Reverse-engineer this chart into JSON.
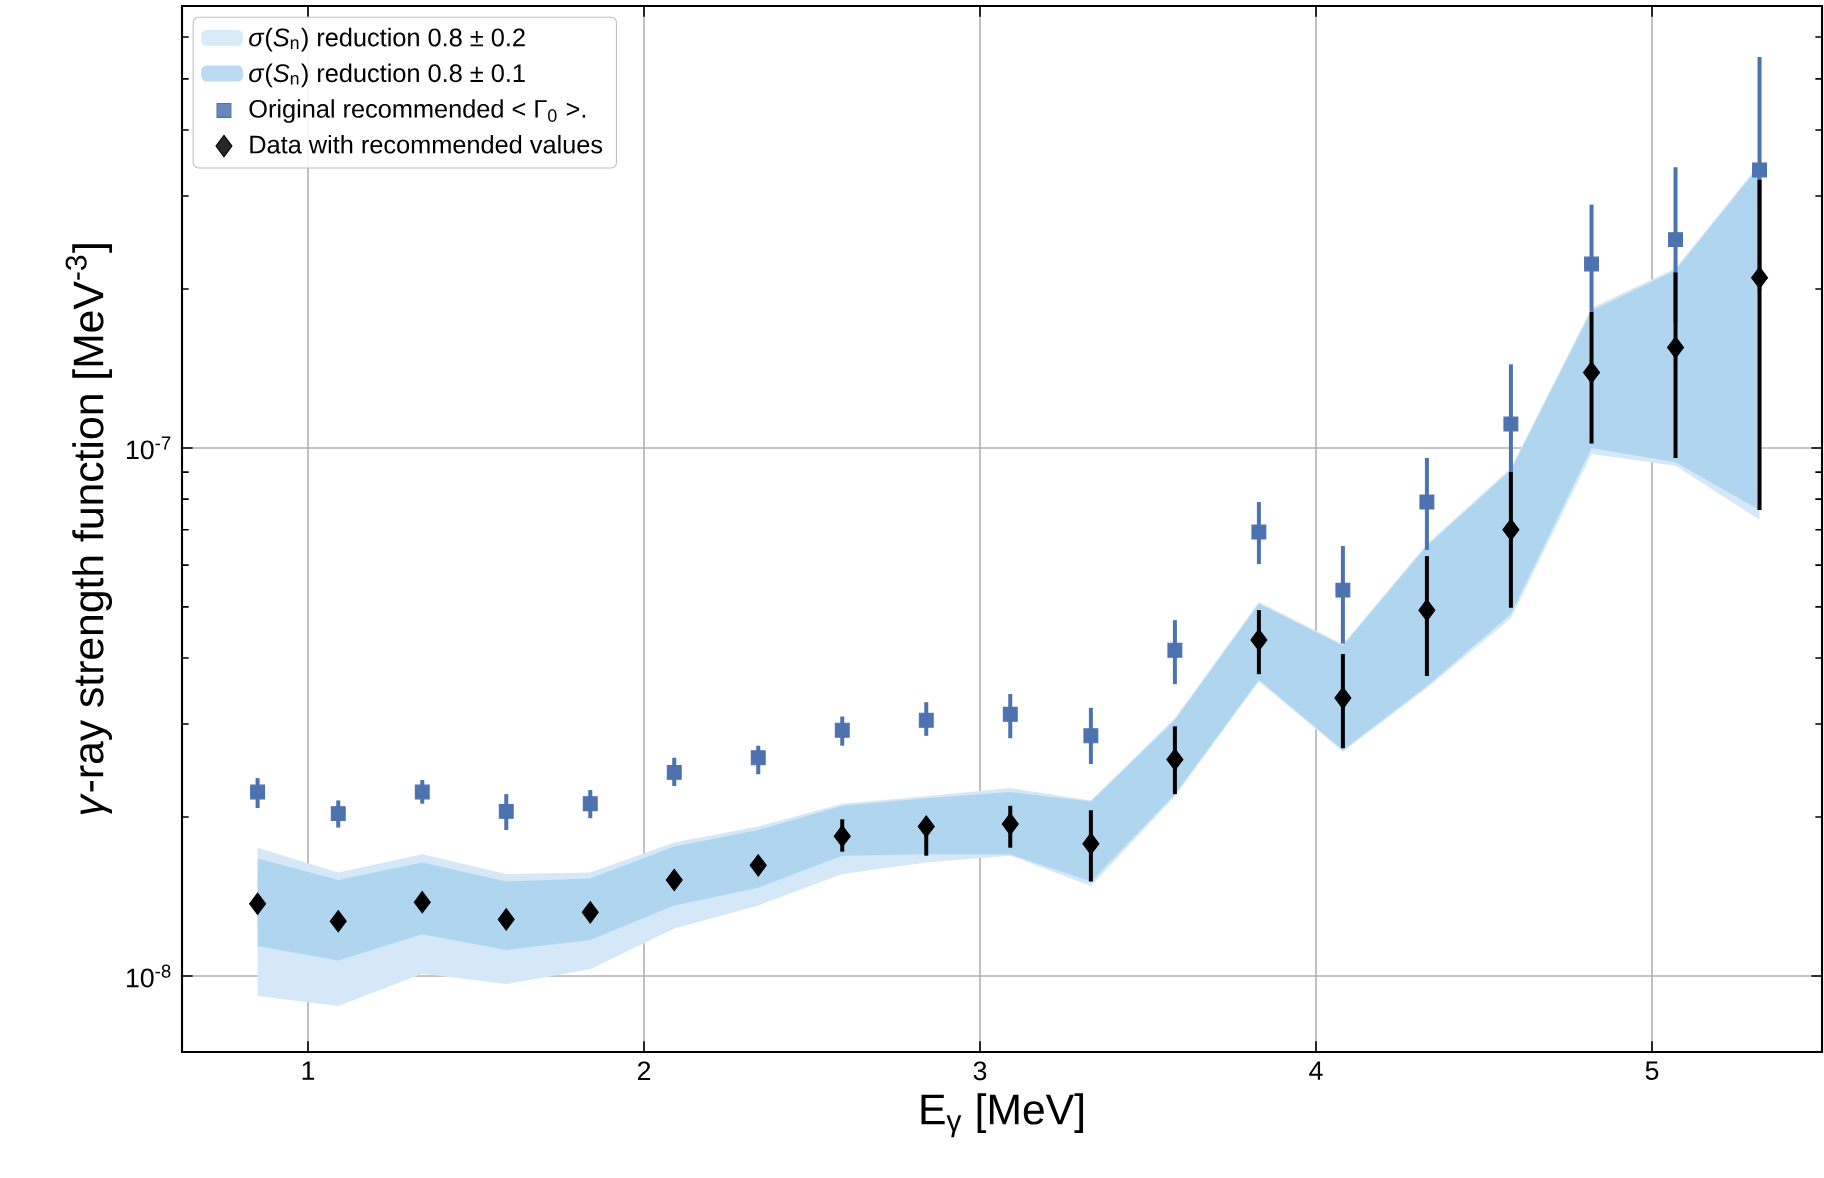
{
  "chart_data": {
    "type": "scatter",
    "xlabel": "E$_{γ}$ [MeV]",
    "ylabel": "*γ*-ray strength function [MeV$^{-3}$]",
    "x": [
      0.85,
      1.09,
      1.34,
      1.59,
      1.84,
      2.09,
      2.34,
      2.59,
      2.84,
      3.09,
      3.33,
      3.58,
      3.83,
      4.08,
      4.33,
      4.58,
      4.82,
      5.07,
      5.32
    ],
    "series": [
      {
        "name": "*σ*(*S*$_{n}$) reduction 0.8 ± 0.2",
        "type": "line",
        "color": "#d4e8f7",
        "values": [
          null,
          null,
          null,
          null,
          null,
          null,
          null,
          null,
          null,
          null,
          null,
          null,
          null,
          null,
          null,
          null,
          null,
          null,
          null
        ],
        "lower": [
          9.17e-09,
          8.77e-09,
          1.01e-08,
          9.66e-09,
          1.03e-08,
          1.23e-08,
          1.36e-08,
          1.56e-08,
          1.64e-08,
          1.69e-08,
          1.48e-08,
          2.19e-08,
          3.61e-08,
          2.66e-08,
          3.51e-08,
          4.76e-08,
          9.74e-08,
          9.25e-08,
          7.31e-08
        ],
        "upper": [
          1.75e-08,
          1.57e-08,
          1.7e-08,
          1.56e-08,
          1.57e-08,
          1.79e-08,
          1.92e-08,
          2.12e-08,
          2.19e-08,
          2.27e-08,
          2.15e-08,
          3.08e-08,
          5.11e-08,
          4.25e-08,
          6.58e-08,
          9.16e-08,
          1.84e-07,
          2.19e-07,
          3.45e-07
        ]
      },
      {
        "name": "*σ*(*S*$_{n}$) reduction 0.8 ± 0.1",
        "type": "line",
        "color": "#b0d5ef",
        "values": [
          null,
          null,
          null,
          null,
          null,
          null,
          null,
          null,
          null,
          null,
          null,
          null,
          null,
          null,
          null,
          null,
          null,
          null,
          null
        ],
        "lower": [
          1.14e-08,
          1.07e-08,
          1.2e-08,
          1.12e-08,
          1.17e-08,
          1.36e-08,
          1.47e-08,
          1.69e-08,
          1.7e-08,
          1.7e-08,
          1.51e-08,
          2.21e-08,
          3.64e-08,
          2.68e-08,
          3.54e-08,
          4.85e-08,
          1e-07,
          9.4e-08,
          7.63e-08
        ],
        "upper": [
          1.67e-08,
          1.52e-08,
          1.64e-08,
          1.51e-08,
          1.53e-08,
          1.76e-08,
          1.89e-08,
          2.1e-08,
          2.17e-08,
          2.23e-08,
          2.14e-08,
          3.05e-08,
          5.07e-08,
          4.22e-08,
          6.52e-08,
          9.08e-08,
          1.82e-07,
          2.17e-07,
          3.42e-07
        ]
      },
      {
        "name": "Original recommended  < Γ$_{0}$ >.",
        "marker": "square",
        "color": "#4c72b0",
        "values": [
          2.23e-08,
          2.03e-08,
          2.23e-08,
          2.05e-08,
          2.12e-08,
          2.43e-08,
          2.59e-08,
          2.92e-08,
          3.05e-08,
          3.13e-08,
          2.85e-08,
          4.14e-08,
          6.93e-08,
          5.38e-08,
          7.9e-08,
          1.11e-07,
          2.23e-07,
          2.48e-07,
          3.36e-07
        ],
        "errors": [
          [
            2.08e-08,
            2.37e-08
          ],
          [
            1.91e-08,
            2.15e-08
          ],
          [
            2.12e-08,
            2.35e-08
          ],
          [
            1.89e-08,
            2.21e-08
          ],
          [
            1.99e-08,
            2.25e-08
          ],
          [
            2.29e-08,
            2.59e-08
          ],
          [
            2.41e-08,
            2.73e-08
          ],
          [
            2.73e-08,
            3.1e-08
          ],
          [
            2.85e-08,
            3.3e-08
          ],
          [
            2.82e-08,
            3.42e-08
          ],
          [
            2.52e-08,
            3.22e-08
          ],
          [
            3.57e-08,
            4.72e-08
          ],
          [
            6.03e-08,
            7.9e-08
          ],
          [
            4.26e-08,
            6.52e-08
          ],
          [
            6.41e-08,
            9.57e-08
          ],
          [
            9e-08,
            1.44e-07
          ],
          [
            1.81e-07,
            2.89e-07
          ],
          [
            1.73e-07,
            3.4e-07
          ],
          [
            1.99e-07,
            5.5e-07
          ]
        ]
      },
      {
        "name": "Data with recommended values",
        "marker": "diamond",
        "color": "#000000",
        "values": [
          1.37e-08,
          1.27e-08,
          1.38e-08,
          1.28e-08,
          1.32e-08,
          1.52e-08,
          1.62e-08,
          1.84e-08,
          1.92e-08,
          1.94e-08,
          1.78e-08,
          2.57e-08,
          4.33e-08,
          3.36e-08,
          4.93e-08,
          7e-08,
          1.39e-07,
          1.55e-07,
          2.1e-07
        ],
        "errors": [
          null,
          null,
          null,
          null,
          null,
          null,
          null,
          [
            1.72e-08,
            1.98e-08
          ],
          [
            1.69e-08,
            1.99e-08
          ],
          [
            1.75e-08,
            2.1e-08
          ],
          [
            1.51e-08,
            2.06e-08
          ],
          [
            2.21e-08,
            2.97e-08
          ],
          [
            3.73e-08,
            4.93e-08
          ],
          [
            2.7e-08,
            4.07e-08
          ],
          [
            3.7e-08,
            6.24e-08
          ],
          [
            4.98e-08,
            9e-08
          ],
          [
            1.02e-07,
            1.81e-07
          ],
          [
            9.57e-08,
            2.15e-07
          ],
          [
            7.63e-08,
            3.22e-07
          ]
        ]
      }
    ],
    "log": "y",
    "xlim": [
      0.625,
      5.506
    ],
    "ylim": [
      7.18e-09,
      6.87e-07
    ],
    "xticks": [
      1,
      2,
      3,
      4,
      5
    ],
    "yticks": [
      {
        "value": 1e-08,
        "label": "10$^{-8}$"
      },
      {
        "value": 2e-08,
        "label": null
      },
      {
        "value": 3e-08,
        "label": null
      },
      {
        "value": 4e-08,
        "label": null
      },
      {
        "value": 5e-08,
        "label": null
      },
      {
        "value": 6e-08,
        "label": null
      },
      {
        "value": 7e-08,
        "label": null
      },
      {
        "value": 8e-08,
        "label": null
      },
      {
        "value": 9e-08,
        "label": null
      },
      {
        "value": 1e-07,
        "label": "10$^{-7}$"
      },
      {
        "value": 2e-07,
        "label": null
      },
      {
        "value": 3e-07,
        "label": null
      },
      {
        "value": 4e-07,
        "label": null
      },
      {
        "value": 5e-07,
        "label": null
      },
      {
        "value": 6e-07,
        "label": null
      }
    ],
    "grid": true,
    "legend": "top left"
  }
}
